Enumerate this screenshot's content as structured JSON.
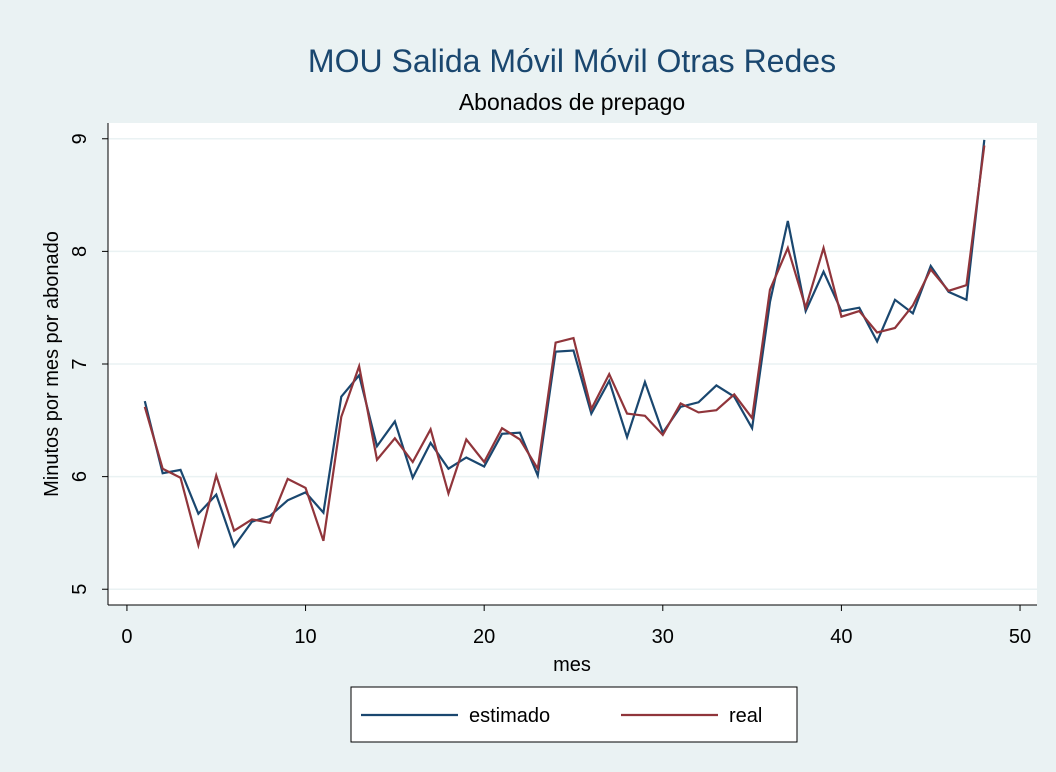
{
  "chart_data": {
    "type": "line",
    "title": "MOU Salida Móvil Móvil Otras Redes",
    "subtitle": "Abonados de prepago",
    "x_label": "mes",
    "y_label": "Minutos por mes por abonado",
    "x": [
      1,
      2,
      3,
      4,
      5,
      6,
      7,
      8,
      9,
      10,
      11,
      12,
      13,
      14,
      15,
      16,
      17,
      18,
      19,
      20,
      21,
      22,
      23,
      24,
      25,
      26,
      27,
      28,
      29,
      30,
      31,
      32,
      33,
      34,
      35,
      36,
      37,
      38,
      39,
      40,
      41,
      42,
      43,
      44,
      45,
      46,
      47,
      48
    ],
    "series": [
      {
        "name": "estimado",
        "color": "#1a476f",
        "values": [
          6.67,
          6.03,
          6.06,
          5.67,
          5.84,
          5.38,
          5.6,
          5.65,
          5.79,
          5.86,
          5.68,
          6.71,
          6.9,
          6.27,
          6.49,
          5.99,
          6.3,
          6.07,
          6.17,
          6.09,
          6.38,
          6.39,
          6.01,
          7.11,
          7.12,
          6.56,
          6.85,
          6.35,
          6.84,
          6.39,
          6.62,
          6.66,
          6.81,
          6.71,
          6.43,
          7.55,
          8.27,
          7.47,
          7.82,
          7.47,
          7.5,
          7.2,
          7.57,
          7.45,
          7.87,
          7.64,
          7.57,
          8.99
        ]
      },
      {
        "name": "real",
        "color": "#90353b",
        "values": [
          6.62,
          6.07,
          5.99,
          5.39,
          6.01,
          5.52,
          5.62,
          5.59,
          5.98,
          5.9,
          5.43,
          6.53,
          6.98,
          6.15,
          6.34,
          6.13,
          6.42,
          5.85,
          6.33,
          6.13,
          6.43,
          6.33,
          6.07,
          7.19,
          7.23,
          6.6,
          6.91,
          6.56,
          6.54,
          6.37,
          6.65,
          6.57,
          6.59,
          6.73,
          6.52,
          7.66,
          8.03,
          7.5,
          8.03,
          7.42,
          7.47,
          7.28,
          7.32,
          7.52,
          7.84,
          7.65,
          7.7,
          8.94
        ]
      }
    ],
    "xlim": [
      -1.06,
      50.95
    ],
    "xticks": [
      0,
      10,
      20,
      30,
      40,
      50
    ],
    "ylim": [
      4.86,
      9.14
    ],
    "yticks": [
      5,
      6,
      7,
      8,
      9
    ],
    "grid": true,
    "legend": "bottom"
  }
}
